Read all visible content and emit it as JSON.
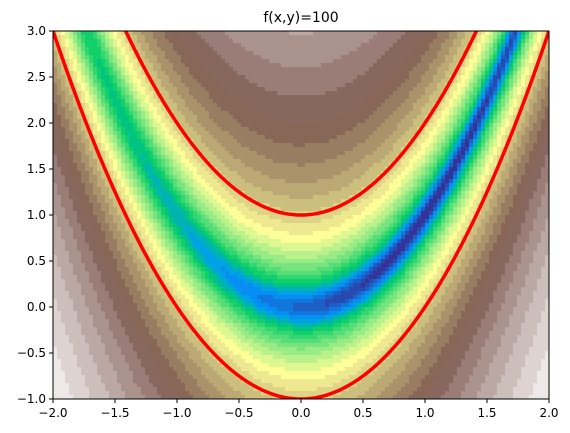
{
  "chart_data": {
    "type": "contour",
    "title": "f(x,y)=100",
    "xlabel": "",
    "ylabel": "",
    "xlim": [
      -2.0,
      2.0
    ],
    "ylim": [
      -1.0,
      3.0
    ],
    "x_ticks": [
      "−2.0",
      "−1.5",
      "−1.0",
      "−0.5",
      "0.0",
      "0.5",
      "1.0",
      "1.5",
      "2.0"
    ],
    "x_tick_values": [
      -2.0,
      -1.5,
      -1.0,
      -0.5,
      0.0,
      0.5,
      1.0,
      1.5,
      2.0
    ],
    "y_ticks": [
      "−1.0",
      "−0.5",
      "0.0",
      "0.5",
      "1.0",
      "1.5",
      "2.0",
      "2.5",
      "3.0"
    ],
    "y_tick_values": [
      -1.0,
      -0.5,
      0.0,
      0.5,
      1.0,
      1.5,
      2.0,
      2.5,
      3.0
    ],
    "colormap": "terrain",
    "grid": false,
    "contour_lines": [
      {
        "equation": "y = x^2 + 1",
        "color": "#ff0000"
      },
      {
        "equation": "y = x^2 - 1",
        "color": "#ff0000"
      }
    ]
  }
}
